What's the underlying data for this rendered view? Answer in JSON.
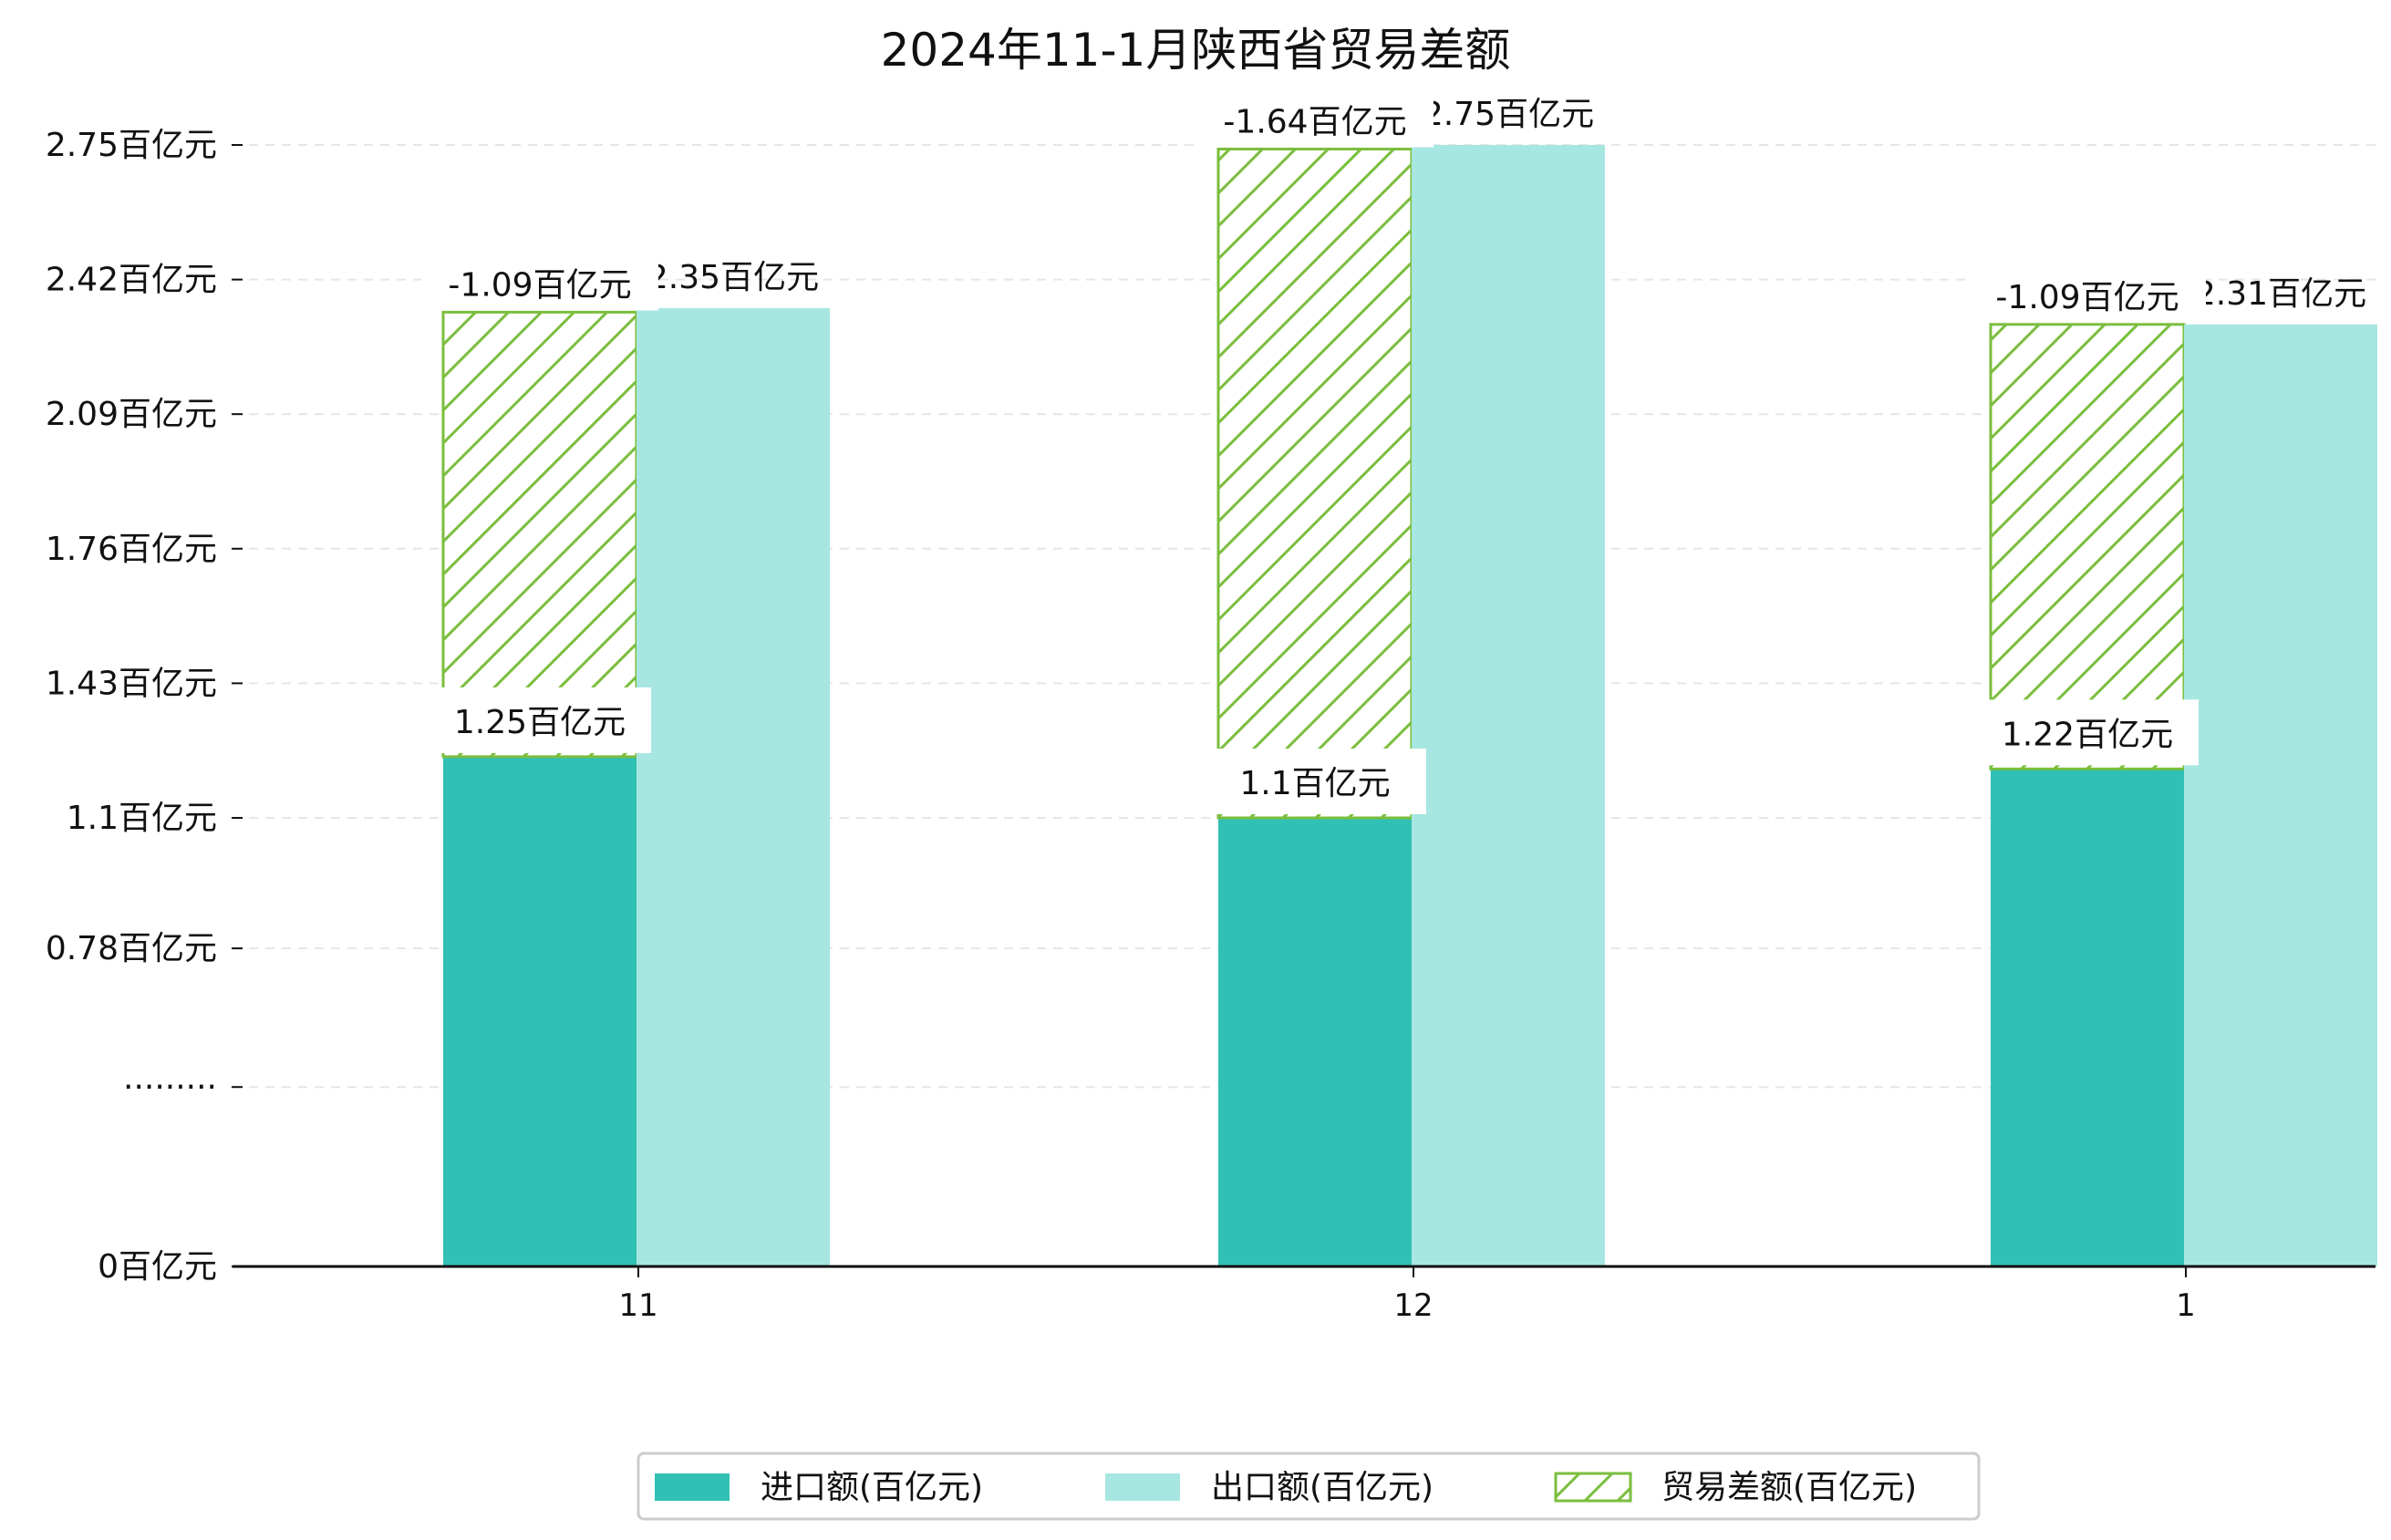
{
  "chart_data": {
    "type": "bar",
    "title": "2024年11-1月陕西省贸易差额",
    "categories": [
      "11",
      "12",
      "1"
    ],
    "unit": "百亿元",
    "ylim": [
      0,
      2.75
    ],
    "y_ticks": [
      {
        "value": 0,
        "label": "0百亿元"
      },
      {
        "value": 0.44,
        "label": "·········"
      },
      {
        "value": 0.78,
        "label": "0.78百亿元"
      },
      {
        "value": 1.1,
        "label": "1.1百亿元"
      },
      {
        "value": 1.43,
        "label": "1.43百亿元"
      },
      {
        "value": 1.76,
        "label": "1.76百亿元"
      },
      {
        "value": 2.09,
        "label": "2.09百亿元"
      },
      {
        "value": 2.42,
        "label": "2.42百亿元"
      },
      {
        "value": 2.75,
        "label": "2.75百亿元"
      }
    ],
    "series": [
      {
        "name": "进口额(百亿元)",
        "values": [
          1.25,
          1.1,
          1.22
        ],
        "labels": [
          "1.25百亿元",
          "1.1百亿元",
          "1.22百亿元"
        ],
        "color": "#31C0B4"
      },
      {
        "name": "出口额(百亿元)",
        "values": [
          2.35,
          2.75,
          2.31
        ],
        "labels": [
          "2.35百亿元",
          "2.75百亿元",
          "2.31百亿元"
        ],
        "color": "#A8E7E1"
      },
      {
        "name": "贸易差额(百亿元)",
        "values": [
          -1.09,
          -1.64,
          -1.09
        ],
        "labels": [
          "-1.09百亿元",
          "-1.64百亿元",
          "-1.09百亿元"
        ],
        "color": "#7BBE3E",
        "style": "hatched"
      }
    ],
    "grid": "horizontal-dashed",
    "legend_position": "bottom-center"
  }
}
